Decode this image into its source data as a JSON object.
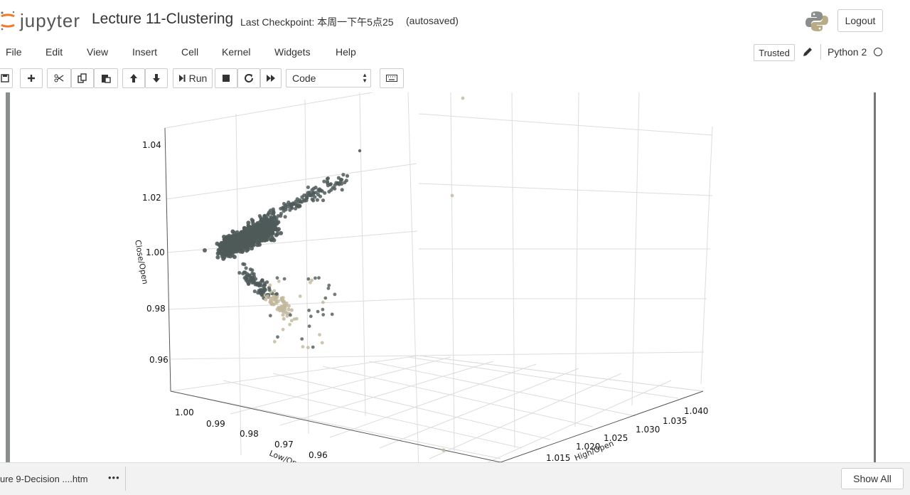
{
  "header": {
    "logo_text": "jupyter",
    "notebook_title": "Lecture 11-Clustering",
    "checkpoint": "Last Checkpoint: 本周一下午5点25",
    "autosave": "(autosaved)",
    "logout_label": "Logout"
  },
  "menubar": {
    "items": [
      "File",
      "Edit",
      "View",
      "Insert",
      "Cell",
      "Kernel",
      "Widgets",
      "Help"
    ],
    "trusted_label": "Trusted",
    "kernel_name": "Python 2"
  },
  "toolbar": {
    "run_label": "Run",
    "cell_type": "Code"
  },
  "chart_data": {
    "type": "scatter",
    "projection": "3d",
    "xlabel": "High/Open",
    "ylabel": "Low/Open",
    "zlabel": "Close/Open",
    "x_ticks": [
      "1.015",
      "1.020",
      "1.025",
      "1.030",
      "1.035",
      "1.040"
    ],
    "y_ticks": [
      "1.00",
      "0.99",
      "0.98",
      "0.97",
      "0.96"
    ],
    "z_ticks": [
      "0.96",
      "0.98",
      "1.00",
      "1.02",
      "1.04"
    ],
    "grid": true,
    "colors": {
      "dark_cluster": "#4f5a59",
      "light_cluster": "#c2b89c",
      "grid": "#dddddd"
    }
  },
  "download_bar": {
    "item_label": "ure 9-Decision ....htm",
    "more_label": "•••",
    "show_all_label": "Show All"
  }
}
